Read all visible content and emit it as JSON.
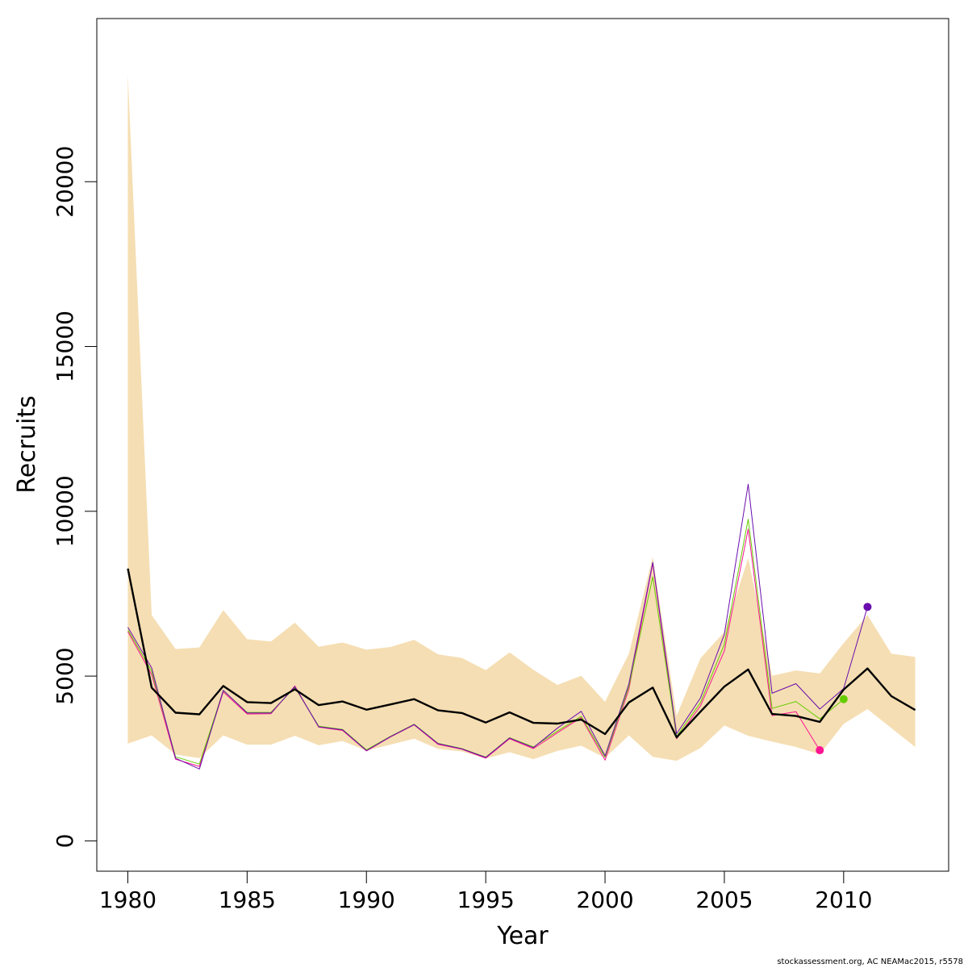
{
  "chart_data": {
    "type": "line",
    "title": "",
    "xlabel": "Year",
    "ylabel": "Recruits",
    "xlim": [
      1978.7,
      2014.4
    ],
    "ylim": [
      -920,
      24950
    ],
    "x_ticks": [
      "1980",
      "1985",
      "1990",
      "1995",
      "2000",
      "2005",
      "2010"
    ],
    "x_tick_values": [
      1980,
      1985,
      1990,
      1995,
      2000,
      2005,
      2010
    ],
    "y_ticks": [
      "0",
      "5000",
      "10000",
      "15000",
      "20000"
    ],
    "y_tick_values": [
      0,
      5000,
      10000,
      15000,
      20000
    ],
    "confidence_band": {
      "color": "#f5deb3",
      "years": [
        1980,
        1981,
        1982,
        1983,
        1984,
        1985,
        1986,
        1987,
        1988,
        1989,
        1990,
        1991,
        1992,
        1993,
        1994,
        1995,
        1996,
        1997,
        1998,
        1999,
        2000,
        2001,
        2002,
        2003,
        2004,
        2005,
        2006,
        2007,
        2008,
        2009,
        2010,
        2011,
        2012,
        2013
      ],
      "upper": [
        23260,
        6850,
        5820,
        5870,
        7000,
        6120,
        6050,
        6620,
        5890,
        6020,
        5800,
        5880,
        6100,
        5660,
        5550,
        5180,
        5720,
        5190,
        4730,
        5010,
        4220,
        5680,
        8620,
        3800,
        5540,
        6340,
        8580,
        5010,
        5170,
        5080,
        6000,
        6850,
        5680,
        5580
      ],
      "lower": [
        2950,
        3200,
        2620,
        2510,
        3200,
        2920,
        2920,
        3190,
        2900,
        3030,
        2740,
        2920,
        3100,
        2790,
        2710,
        2500,
        2690,
        2480,
        2730,
        2890,
        2520,
        3200,
        2550,
        2430,
        2820,
        3500,
        3190,
        3010,
        2850,
        2630,
        3550,
        4000,
        3420,
        2850
      ]
    },
    "series": [
      {
        "color": "#000000",
        "years": [
          1980,
          1981,
          1982,
          1983,
          1984,
          1985,
          1986,
          1987,
          1988,
          1989,
          1990,
          1991,
          1992,
          1993,
          1994,
          1995,
          1996,
          1997,
          1998,
          1999,
          2000,
          2001,
          2002,
          2003,
          2004,
          2005,
          2006,
          2007,
          2008,
          2009,
          2010,
          2011,
          2012,
          2013
        ],
        "values": [
          8260,
          4650,
          3890,
          3840,
          4700,
          4210,
          4180,
          4600,
          4120,
          4230,
          3980,
          4140,
          4300,
          3960,
          3880,
          3590,
          3900,
          3580,
          3560,
          3680,
          3240,
          4200,
          4650,
          3140,
          3920,
          4680,
          5200,
          3850,
          3790,
          3610,
          4590,
          5230,
          4390,
          3970
        ]
      },
      {
        "color": "#ff1493",
        "years": [
          1980,
          1981,
          1982,
          1983,
          1984,
          1985,
          1986,
          1987,
          1988,
          1989,
          1990,
          1991,
          1992,
          1993,
          1994,
          1995,
          1996,
          1997,
          1998,
          1999,
          2000,
          2001,
          2002,
          2003,
          2004,
          2005,
          2006,
          2007,
          2008,
          2009
        ],
        "values": [
          6350,
          5050,
          2480,
          2260,
          4520,
          3850,
          3860,
          4700,
          3450,
          3350,
          2730,
          3150,
          3520,
          2930,
          2780,
          2510,
          3100,
          2800,
          3280,
          3740,
          2450,
          4600,
          8420,
          3100,
          4100,
          5760,
          9460,
          3800,
          3920,
          2750
        ],
        "endpoint": 2009
      },
      {
        "color": "#66cc00",
        "years": [
          1980,
          1981,
          1982,
          1983,
          1984,
          1985,
          1986,
          1987,
          1988,
          1989,
          1990,
          1991,
          1992,
          1993,
          1994,
          1995,
          1996,
          1997,
          1998,
          1999,
          2000,
          2001,
          2002,
          2003,
          2004,
          2005,
          2006,
          2007,
          2008,
          2009,
          2010
        ],
        "values": [
          6400,
          5150,
          2550,
          2330,
          4560,
          3900,
          3900,
          4660,
          3480,
          3380,
          2760,
          3170,
          3540,
          2960,
          2800,
          2540,
          3130,
          2850,
          3330,
          3780,
          2540,
          4680,
          8010,
          3170,
          4200,
          5960,
          9760,
          4020,
          4230,
          3700,
          4300
        ],
        "endpoint": 2010
      },
      {
        "color": "#6a0dad",
        "years": [
          1980,
          1981,
          1982,
          1983,
          1984,
          1985,
          1986,
          1987,
          1988,
          1989,
          1990,
          1991,
          1992,
          1993,
          1994,
          1995,
          1996,
          1997,
          1998,
          1999,
          2000,
          2001,
          2002,
          2003,
          2004,
          2005,
          2006,
          2007,
          2008,
          2009,
          2010,
          2011
        ],
        "values": [
          6480,
          5250,
          2510,
          2180,
          4570,
          3880,
          3880,
          4680,
          3460,
          3370,
          2740,
          3160,
          3530,
          2950,
          2790,
          2530,
          3120,
          2830,
          3420,
          3930,
          2580,
          4760,
          8450,
          3250,
          4340,
          6260,
          10820,
          4480,
          4770,
          4000,
          4620,
          7100
        ],
        "endpoint": 2011
      }
    ]
  },
  "footer": "stockassessment.org, AC  NEAMac2015, r5578"
}
